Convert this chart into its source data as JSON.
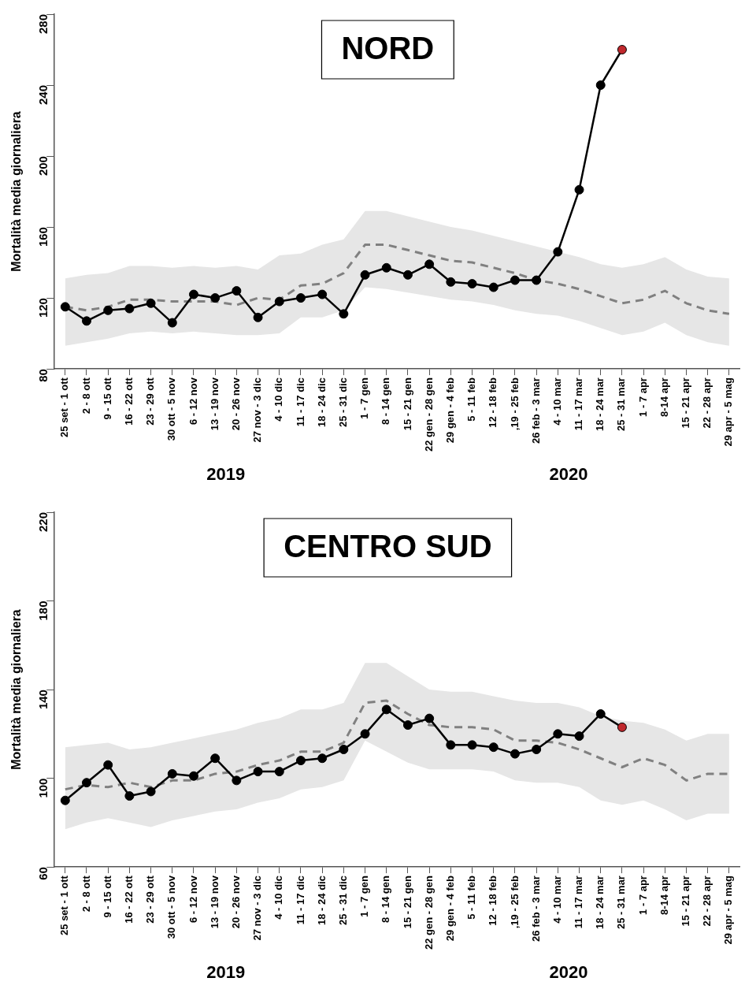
{
  "chart_data": [
    {
      "type": "line",
      "title": "NORD",
      "ylabel": "Mortalità media giornaliera",
      "categories": [
        "25 set - 1 ott",
        "2 - 8 ott",
        "9 - 15 ott",
        "16 - 22 ott",
        "23 - 29 ott",
        "30 ott - 5 nov",
        "6 - 12 nov",
        "13 - 19 nov",
        "20 - 26 nov",
        "27 nov - 3 dic",
        "4 - 10 dic",
        "11 - 17 dic",
        "18 - 24 dic",
        "25 - 31 dic",
        "1 - 7 gen",
        "8 - 14 gen",
        "15 - 21 gen",
        "22 gen - 28 gen",
        "29 gen - 4 feb",
        "5 - 11 feb",
        "12 - 18 feb",
        ",19 - 25 feb",
        "26 feb - 3 mar",
        "4 - 10 mar",
        "11 - 17 mar",
        "18 - 24 mar",
        "25 - 31 mar",
        "1 - 7 apr",
        "8-14 apr",
        "15 - 21 apr",
        "22 - 28 apr",
        "29 apr - 5 mag"
      ],
      "series": [
        {
          "color": "#000000",
          "marker": "circle",
          "line_style": "solid",
          "colors": [
            "#000000",
            "#000000",
            "#000000",
            "#000000",
            "#000000",
            "#000000",
            "#000000",
            "#000000",
            "#000000",
            "#000000",
            "#000000",
            "#000000",
            "#000000",
            "#000000",
            "#000000",
            "#000000",
            "#000000",
            "#000000",
            "#000000",
            "#000000",
            "#000000",
            "#000000",
            "#000000",
            "#000000",
            "#000000",
            "#000000",
            "#c0282d",
            null,
            null,
            null,
            null,
            null
          ],
          "values": [
            115,
            107,
            113,
            114,
            117,
            106,
            122,
            120,
            124,
            109,
            118,
            120,
            122,
            111,
            133,
            137,
            133,
            139,
            129,
            128,
            126,
            130,
            130,
            146,
            181,
            240,
            260,
            null,
            null,
            null,
            null,
            null
          ]
        },
        {
          "color": "#808080",
          "marker": "none",
          "line_style": "dashed",
          "values": [
            115,
            113,
            115,
            119,
            119,
            118,
            118,
            118,
            116,
            120,
            119,
            127,
            128,
            134,
            150,
            150,
            147,
            144,
            141,
            140,
            137,
            134,
            130,
            128,
            125,
            121,
            117,
            119,
            124,
            117,
            113,
            111
          ],
          "lower": [
            93,
            95,
            97,
            100,
            101,
            100,
            101,
            100,
            99,
            99,
            100,
            109,
            109,
            113,
            126,
            125,
            123,
            121,
            119,
            118,
            116,
            113,
            111,
            110,
            107,
            103,
            99,
            101,
            106,
            99,
            95,
            93
          ],
          "upper": [
            131,
            133,
            134,
            138,
            138,
            137,
            138,
            137,
            138,
            136,
            144,
            145,
            150,
            153,
            169,
            169,
            166,
            163,
            160,
            158,
            155,
            152,
            149,
            146,
            143,
            139,
            137,
            139,
            143,
            136,
            132,
            131
          ]
        }
      ],
      "ylim": [
        80,
        280
      ],
      "yticks": [
        80,
        120,
        160,
        200,
        240,
        280
      ],
      "grid": false,
      "legend": false,
      "annotations": [
        "2019",
        "2020"
      ]
    },
    {
      "type": "line",
      "title": "CENTRO SUD",
      "ylabel": "Mortalità media giornaliera",
      "categories": [
        "25 set - 1 ott",
        "2 - 8 ott",
        "9 - 15 ott",
        "16 - 22 ott",
        "23 - 29 ott",
        "30 ott - 5 nov",
        "6 - 12 nov",
        "13 - 19 nov",
        "20 - 26 nov",
        "27 nov - 3 dic",
        "4 - 10 dic",
        "11 - 17 dic",
        "18 - 24 dic",
        "25 - 31 dic",
        "1 - 7 gen",
        "8 - 14 gen",
        "15 - 21 gen",
        "22 gen - 28 gen",
        "29 gen - 4 feb",
        "5 - 11 feb",
        "12 - 18 feb",
        ",19 - 25 feb",
        "26 feb - 3 mar",
        "4 - 10 mar",
        "11 - 17 mar",
        "18 - 24 mar",
        "25 - 31 mar",
        "1 - 7 apr",
        "8-14 apr",
        "15 - 21 apr",
        "22 - 28 apr",
        "29 apr - 5 mag"
      ],
      "series": [
        {
          "color": "#000000",
          "marker": "circle",
          "line_style": "solid",
          "colors": [
            "#000000",
            "#000000",
            "#000000",
            "#000000",
            "#000000",
            "#000000",
            "#000000",
            "#000000",
            "#000000",
            "#000000",
            "#000000",
            "#000000",
            "#000000",
            "#000000",
            "#000000",
            "#000000",
            "#000000",
            "#000000",
            "#000000",
            "#000000",
            "#000000",
            "#000000",
            "#000000",
            "#000000",
            "#000000",
            "#000000",
            "#c0282d",
            null,
            null,
            null,
            null,
            null
          ],
          "values": [
            90,
            98,
            106,
            92,
            94,
            102,
            101,
            109,
            99,
            103,
            103,
            108,
            109,
            113,
            120,
            131,
            124,
            127,
            115,
            115,
            114,
            111,
            113,
            120,
            119,
            129,
            123,
            null,
            null,
            null,
            null,
            null
          ]
        },
        {
          "color": "#808080",
          "marker": "none",
          "line_style": "dashed",
          "values": [
            95,
            97,
            96,
            98,
            96,
            99,
            99,
            102,
            103,
            106,
            108,
            112,
            112,
            116,
            134,
            135,
            129,
            124,
            123,
            123,
            122,
            117,
            117,
            116,
            113,
            109,
            105,
            109,
            106,
            99,
            102,
            102
          ],
          "lower": [
            77,
            80,
            82,
            80,
            78,
            81,
            83,
            85,
            86,
            89,
            91,
            95,
            96,
            99,
            117,
            112,
            107,
            104,
            104,
            104,
            103,
            99,
            98,
            98,
            96,
            90,
            88,
            90,
            86,
            81,
            84,
            84
          ],
          "upper": [
            114,
            115,
            116,
            113,
            114,
            116,
            118,
            120,
            122,
            125,
            127,
            131,
            131,
            134,
            152,
            152,
            146,
            140,
            139,
            139,
            137,
            135,
            134,
            134,
            132,
            128,
            126,
            125,
            122,
            117,
            120,
            120
          ]
        }
      ],
      "ylim": [
        60,
        220
      ],
      "yticks": [
        60,
        100,
        140,
        180,
        220
      ],
      "grid": false,
      "legend": false,
      "annotations": [
        "2019",
        "2020"
      ]
    }
  ]
}
